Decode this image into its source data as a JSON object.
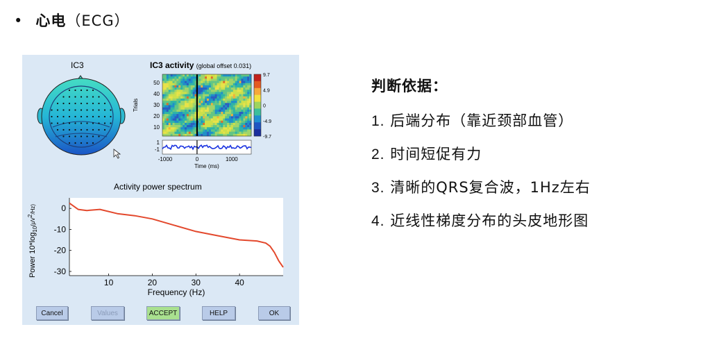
{
  "slide": {
    "bullet": "•",
    "title_cn": "心电",
    "title_paren": "（ECG）"
  },
  "panel": {
    "topomap_title": "IC3",
    "erp_title": "IC3 activity",
    "erp_offset": "(global offset 0.031)",
    "erp_ylabel": "Trials",
    "erp_trial_ticks": [
      "50",
      "40",
      "30",
      "20",
      "10"
    ],
    "erp_lower_ticks": [
      "1",
      "-1"
    ],
    "erp_xticks": [
      "-1000",
      "0",
      "1000"
    ],
    "erp_xlabel": "Time (ms)",
    "colorbar_ticks": [
      "9.7",
      "4.9",
      "0",
      "-4.9",
      "-9.7"
    ],
    "spectrum_title": "Activity power spectrum",
    "spectrum_xlabel": "Frequency (Hz)",
    "spectrum_ylabel_parts": [
      "Power 10*log",
      "10",
      "(μV",
      "2",
      "/Hz)"
    ]
  },
  "buttons": {
    "cancel": "Cancel",
    "values": "Values",
    "accept": "ACCEPT",
    "help": "HELP",
    "ok": "OK"
  },
  "criteria": {
    "heading": "判断依据：",
    "items": [
      {
        "num": "1.",
        "text": "后端分布（靠近颈部血管）"
      },
      {
        "num": "2.",
        "text": "时间短促有力"
      },
      {
        "num": "3.",
        "text": "清晰的QRS复合波，1Hz左右"
      },
      {
        "num": "4.",
        "text": "近线性梯度分布的头皮地形图"
      }
    ]
  },
  "colors": {
    "panel_bg": "#dbe8f5",
    "button_bg": "#b9cbe8",
    "accept_bg": "#a9e08f",
    "spectrum_line": "#e3482c"
  },
  "chart_data": {
    "type": "line",
    "title": "Activity power spectrum",
    "xlabel": "Frequency (Hz)",
    "ylabel": "Power 10*log10(μV2/Hz)",
    "x": [
      1,
      3,
      5,
      8,
      12,
      16,
      20,
      25,
      30,
      35,
      40,
      44,
      46,
      47,
      48,
      49,
      50
    ],
    "values": [
      2.5,
      -0.5,
      -1.0,
      -0.5,
      -2.5,
      -3.5,
      -5,
      -8,
      -11,
      -13,
      -15,
      -15.5,
      -16.5,
      -18,
      -21,
      -25,
      -28
    ],
    "xticks": [
      10,
      20,
      30,
      40
    ],
    "yticks": [
      0,
      -10,
      -20,
      -30
    ],
    "xlim": [
      1,
      50
    ],
    "ylim": [
      -32,
      5
    ],
    "grid": false
  }
}
